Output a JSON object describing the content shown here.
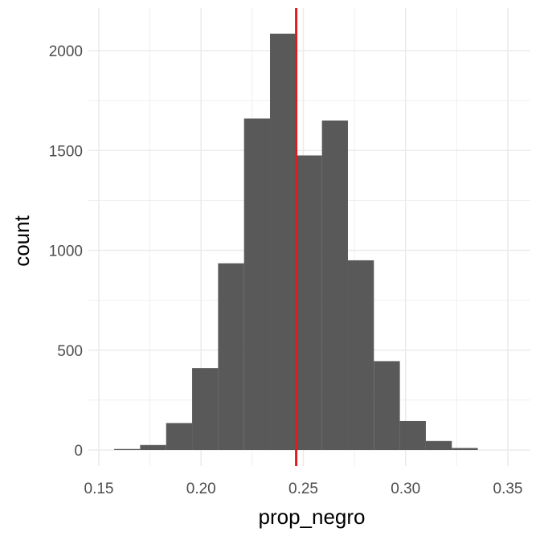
{
  "chart_data": {
    "type": "histogram",
    "xlabel": "prop_negro",
    "ylabel": "count",
    "xlim": [
      0.15,
      0.35
    ],
    "ylim": [
      0,
      2100
    ],
    "x_ticks": [
      0.15,
      0.2,
      0.25,
      0.3,
      0.35
    ],
    "x_tick_labels": [
      "0.15",
      "0.20",
      "0.25",
      "0.30",
      "0.35"
    ],
    "y_ticks": [
      0,
      500,
      1000,
      1500,
      2000
    ],
    "y_tick_labels": [
      "0",
      "500",
      "1000",
      "1500",
      "2000"
    ],
    "bins": [
      {
        "x0": 0.1575,
        "x1": 0.1702,
        "count": 5
      },
      {
        "x0": 0.1702,
        "x1": 0.1829,
        "count": 25
      },
      {
        "x0": 0.1829,
        "x1": 0.1956,
        "count": 135
      },
      {
        "x0": 0.1956,
        "x1": 0.2083,
        "count": 410
      },
      {
        "x0": 0.2083,
        "x1": 0.221,
        "count": 935
      },
      {
        "x0": 0.221,
        "x1": 0.2337,
        "count": 1660
      },
      {
        "x0": 0.2337,
        "x1": 0.2464,
        "count": 2085
      },
      {
        "x0": 0.2464,
        "x1": 0.2591,
        "count": 1475
      },
      {
        "x0": 0.2591,
        "x1": 0.2718,
        "count": 1650
      },
      {
        "x0": 0.2718,
        "x1": 0.2845,
        "count": 950
      },
      {
        "x0": 0.2845,
        "x1": 0.2972,
        "count": 445
      },
      {
        "x0": 0.2972,
        "x1": 0.3099,
        "count": 145
      },
      {
        "x0": 0.3099,
        "x1": 0.3226,
        "count": 45
      },
      {
        "x0": 0.3226,
        "x1": 0.3353,
        "count": 10
      }
    ],
    "vline": {
      "x": 0.2465,
      "color": "#e41a1c"
    },
    "bar_color": "#595959",
    "grid": true
  }
}
